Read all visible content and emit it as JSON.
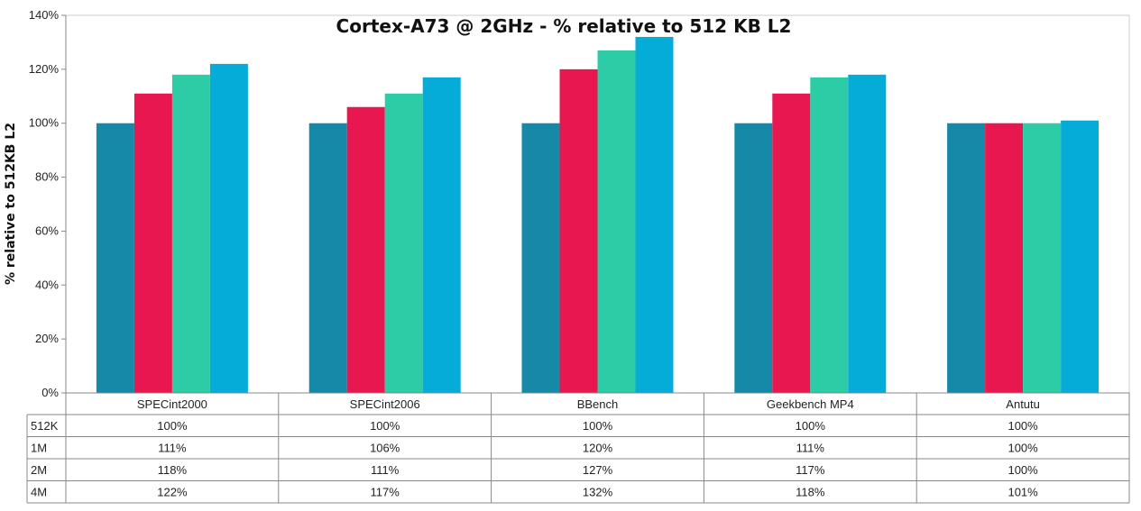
{
  "chart_data": {
    "type": "bar",
    "title": "Cortex-A73 @ 2GHz - % relative to 512 KB L2",
    "xlabel": "",
    "ylabel": "% relative to 512KB L2",
    "ylim": [
      0,
      140
    ],
    "yticks": [
      0,
      20,
      40,
      60,
      80,
      100,
      120,
      140
    ],
    "ytick_labels": [
      "0%",
      "20%",
      "40%",
      "60%",
      "80%",
      "100%",
      "120%",
      "140%"
    ],
    "grid": false,
    "legend": "data table below chart",
    "categories": [
      "SPECint2000",
      "SPECint2006",
      "BBench",
      "Geekbench MP4",
      "Antutu"
    ],
    "series": [
      {
        "name": "512K",
        "color": "#1689a8",
        "values": [
          100,
          100,
          100,
          100,
          100
        ],
        "labels": [
          "100%",
          "100%",
          "100%",
          "100%",
          "100%"
        ]
      },
      {
        "name": "1M",
        "color": "#e8174f",
        "values": [
          111,
          106,
          120,
          111,
          100
        ],
        "labels": [
          "111%",
          "106%",
          "120%",
          "111%",
          "100%"
        ]
      },
      {
        "name": "2M",
        "color": "#2ccca6",
        "values": [
          118,
          111,
          127,
          117,
          100
        ],
        "labels": [
          "118%",
          "111%",
          "127%",
          "117%",
          "100%"
        ]
      },
      {
        "name": "4M",
        "color": "#05acd8",
        "values": [
          122,
          117,
          132,
          118,
          101
        ],
        "labels": [
          "122%",
          "117%",
          "132%",
          "118%",
          "101%"
        ]
      }
    ]
  }
}
